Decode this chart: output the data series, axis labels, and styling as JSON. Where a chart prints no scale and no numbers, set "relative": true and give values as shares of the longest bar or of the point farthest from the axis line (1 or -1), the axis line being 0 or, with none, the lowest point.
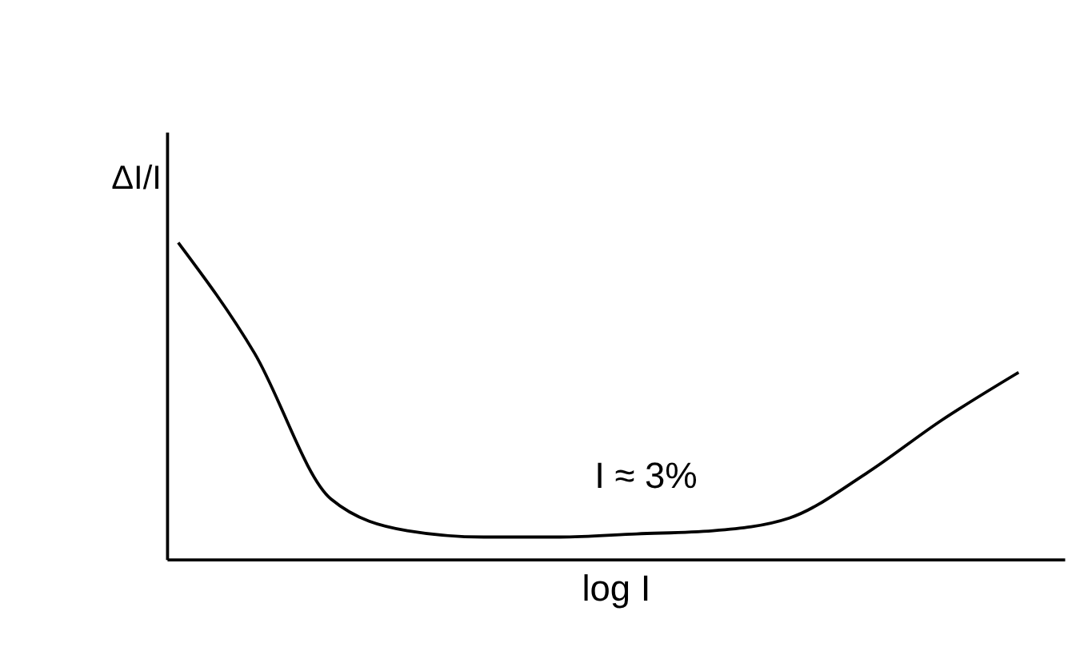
{
  "chart_data": {
    "type": "line",
    "xlabel": "log I",
    "ylabel": "ΔI/I",
    "relative": true,
    "categories": [
      null,
      null,
      null,
      null,
      null,
      null,
      null,
      null,
      null,
      null,
      null,
      null
    ],
    "series": [
      {
        "color": "#000000",
        "values": [
          1,
          0.65,
          0.19,
          0.09,
          0.07,
          0.07,
          0.08,
          0.09,
          0.13,
          0.27,
          0.44,
          0.59
        ]
      }
    ],
    "annotations": [
      "I ≈ 3%"
    ],
    "grid": false,
    "marker": "none",
    "line_style": "solid",
    "tick_labels": false
  }
}
